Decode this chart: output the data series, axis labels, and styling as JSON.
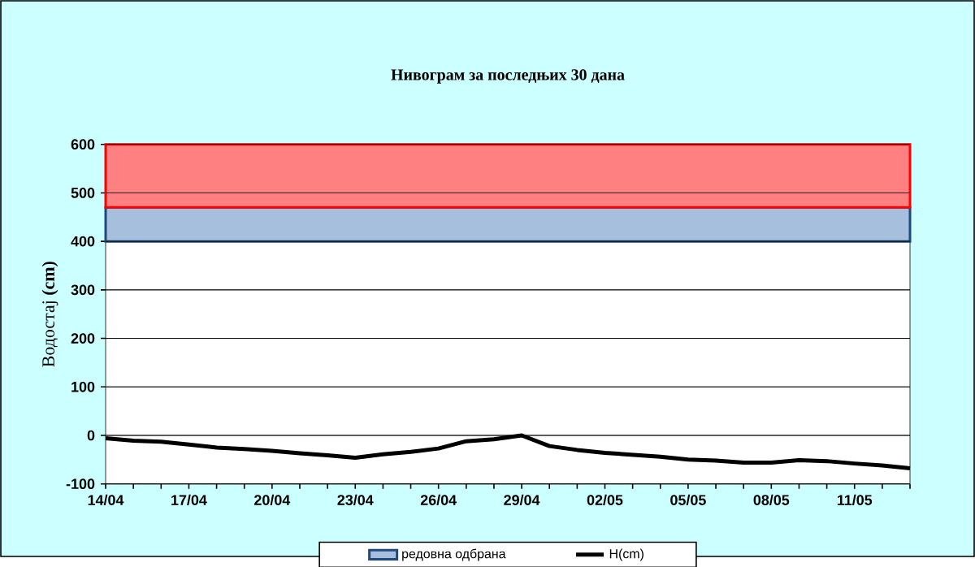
{
  "chart_data": {
    "type": "line",
    "title": "Нивограм за последњих 30 дана",
    "ylabel": "Водостај **(cm)**",
    "categories": [
      "14/04",
      null,
      null,
      "17/04",
      null,
      null,
      "20/04",
      null,
      null,
      "23/04",
      null,
      null,
      "26/04",
      null,
      null,
      "29/04",
      null,
      null,
      "02/05",
      null,
      null,
      "05/05",
      null,
      null,
      "08/05",
      null,
      null,
      "11/05",
      null,
      null
    ],
    "series": [
      {
        "name": "H(cm)",
        "color": "#000000",
        "values": [
          -6,
          -11,
          -13,
          -19,
          -25,
          -28,
          -32,
          -37,
          -41,
          -46,
          -39,
          -34,
          -27,
          -12,
          -8,
          0,
          -22,
          -30,
          -36,
          -40,
          -44,
          -50,
          -52,
          -56,
          -56,
          -51,
          -53,
          -58,
          -62,
          -68
        ]
      }
    ],
    "ylim": [
      -100,
      600
    ],
    "yticks": [
      -100,
      0,
      100,
      200,
      300,
      400,
      500,
      600
    ],
    "grid": "y",
    "legend": "bottom",
    "marker": "none",
    "line_style": "solid",
    "bands": [
      {
        "axis": "y",
        "from": 400,
        "to": 470,
        "label": "редовна одбрана",
        "color": "#a6bfdd"
      },
      {
        "axis": "y",
        "from": 470,
        "to": 600,
        "label": null,
        "color": "#ff8080"
      }
    ]
  }
}
